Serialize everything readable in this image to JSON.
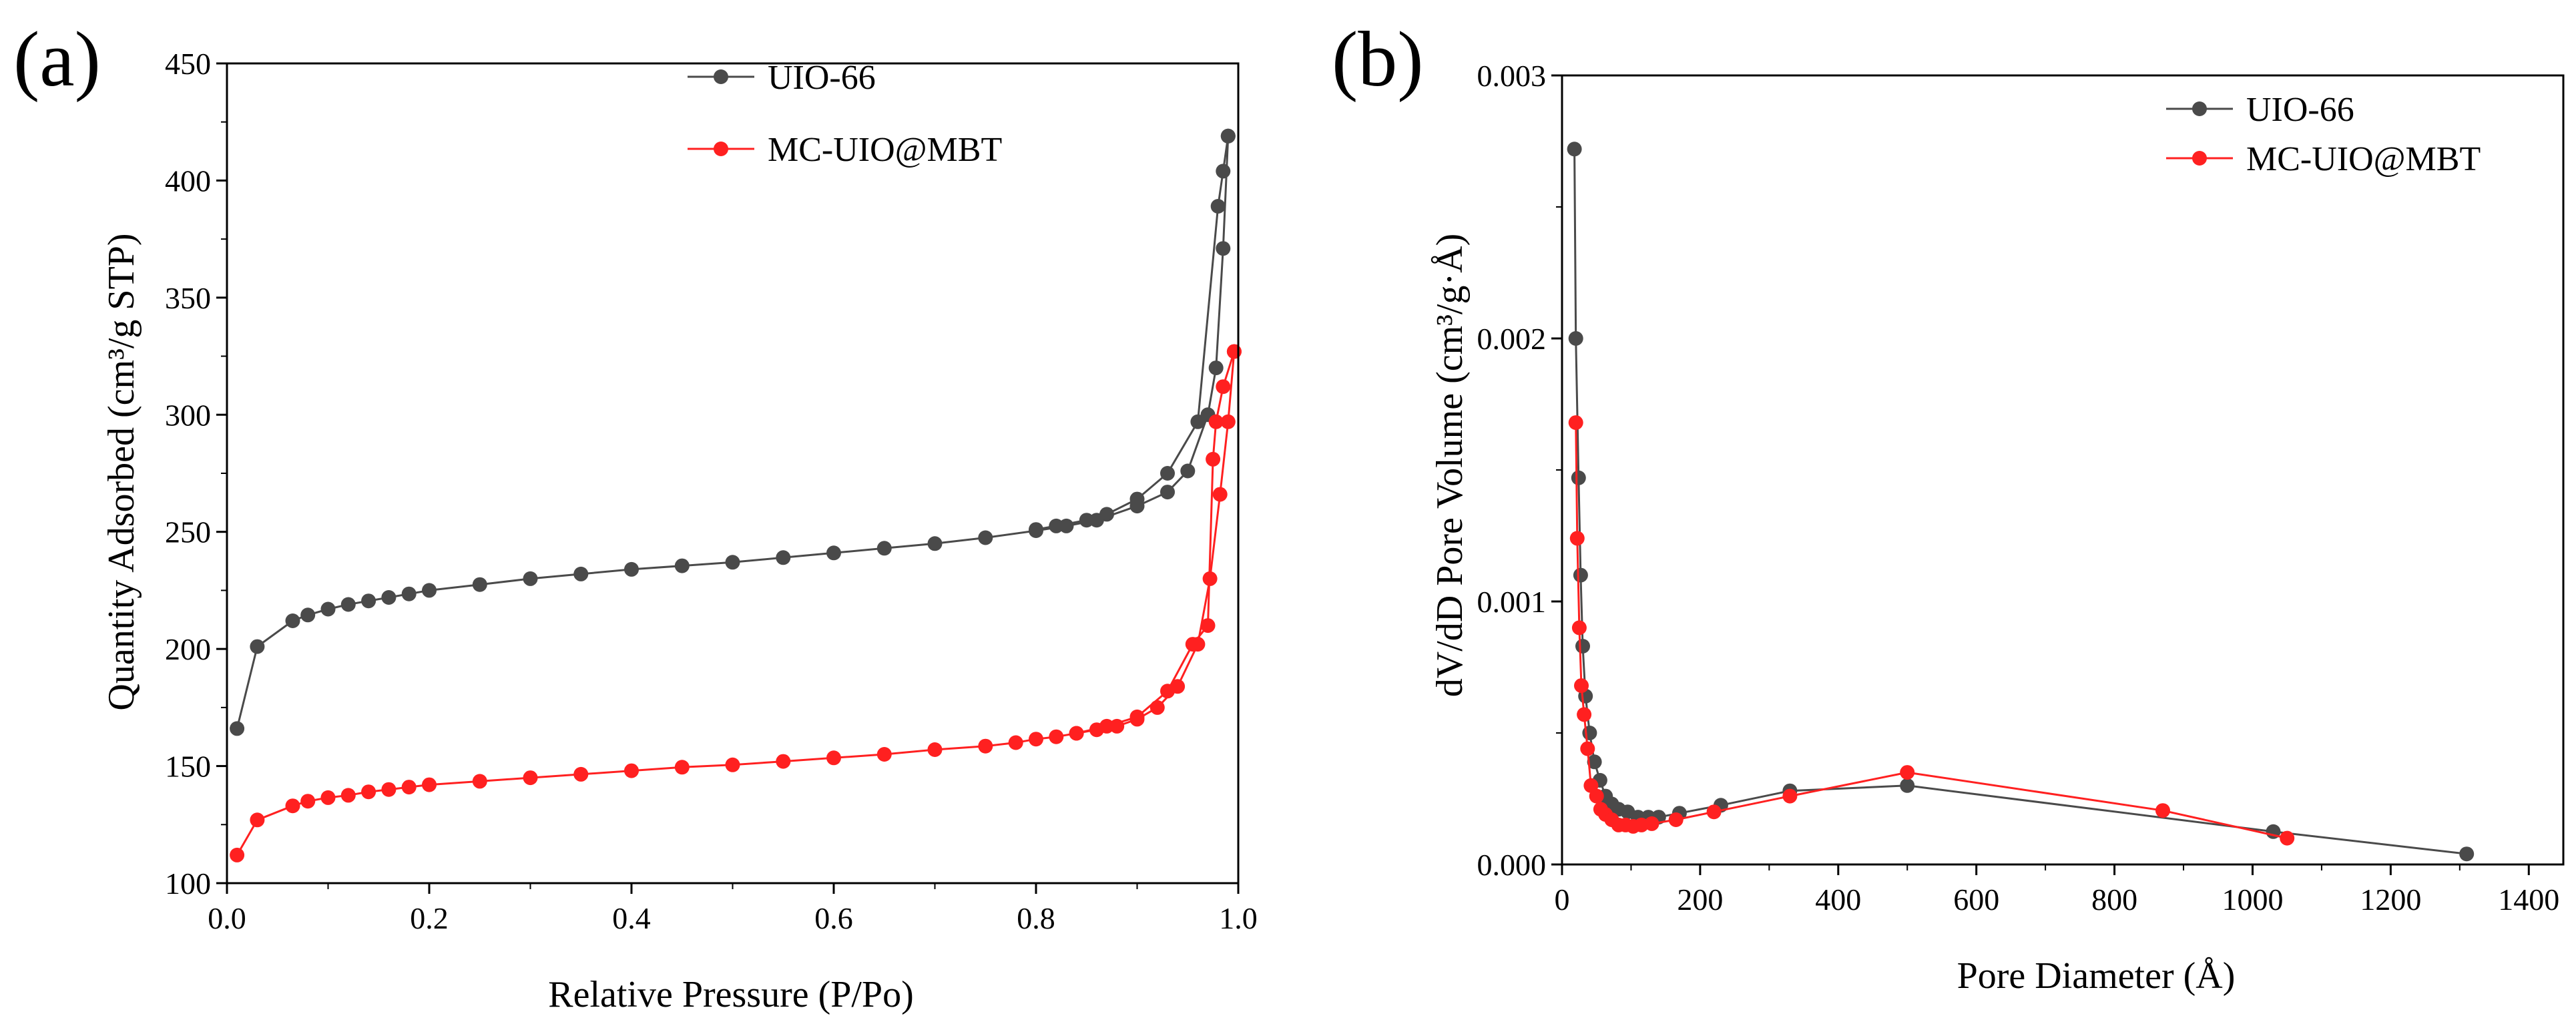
{
  "chart_data": [
    {
      "panel_label": "(a)",
      "type": "line",
      "title": "",
      "xlabel": "Relative Pressure (P/Po)",
      "ylabel": "Quantity Adsorbed (cm³/g STP)",
      "xlim": [
        0.0,
        1.0
      ],
      "ylim": [
        100,
        450
      ],
      "xticks": [
        "0.0",
        "0.2",
        "0.4",
        "0.6",
        "0.8",
        "1.0"
      ],
      "yticks": [
        "100",
        "150",
        "200",
        "250",
        "300",
        "350",
        "400",
        "450"
      ],
      "legend": [
        "UIO-66",
        "MC-UIO@MBT"
      ],
      "series": [
        {
          "name": "UIO-66",
          "color": "#4a4a4a",
          "adsorption": [
            [
              0.01,
              166
            ],
            [
              0.03,
              201
            ],
            [
              0.065,
              212
            ],
            [
              0.08,
              214.5
            ],
            [
              0.1,
              217
            ],
            [
              0.12,
              219
            ],
            [
              0.14,
              220.5
            ],
            [
              0.16,
              222
            ],
            [
              0.18,
              223.5
            ],
            [
              0.2,
              225
            ],
            [
              0.25,
              227.5
            ],
            [
              0.3,
              230
            ],
            [
              0.35,
              232
            ],
            [
              0.4,
              234
            ],
            [
              0.45,
              235.5
            ],
            [
              0.5,
              237
            ],
            [
              0.55,
              239
            ],
            [
              0.6,
              241
            ],
            [
              0.65,
              243
            ],
            [
              0.7,
              245
            ],
            [
              0.75,
              247.5
            ],
            [
              0.8,
              250.5
            ],
            [
              0.83,
              252.5
            ],
            [
              0.86,
              255
            ],
            [
              0.9,
              261
            ],
            [
              0.93,
              267
            ],
            [
              0.95,
              276
            ],
            [
              0.97,
              300
            ],
            [
              0.978,
              320
            ],
            [
              0.985,
              371
            ],
            [
              0.99,
              419
            ]
          ],
          "desorption": [
            [
              0.99,
              419
            ],
            [
              0.985,
              404
            ],
            [
              0.98,
              389
            ],
            [
              0.96,
              297
            ],
            [
              0.93,
              275
            ],
            [
              0.9,
              264
            ],
            [
              0.87,
              257.5
            ],
            [
              0.85,
              255
            ],
            [
              0.82,
              252.5
            ],
            [
              0.8,
              251
            ]
          ]
        },
        {
          "name": "MC-UIO@MBT",
          "color": "#ff2020",
          "adsorption": [
            [
              0.01,
              112
            ],
            [
              0.03,
              127
            ],
            [
              0.065,
              133
            ],
            [
              0.08,
              135
            ],
            [
              0.1,
              136.5
            ],
            [
              0.12,
              137.5
            ],
            [
              0.14,
              139
            ],
            [
              0.16,
              140
            ],
            [
              0.18,
              141
            ],
            [
              0.2,
              142
            ],
            [
              0.25,
              143.5
            ],
            [
              0.3,
              145
            ],
            [
              0.35,
              146.5
            ],
            [
              0.4,
              148
            ],
            [
              0.45,
              149.5
            ],
            [
              0.5,
              150.5
            ],
            [
              0.55,
              152
            ],
            [
              0.6,
              153.5
            ],
            [
              0.65,
              155
            ],
            [
              0.7,
              157
            ],
            [
              0.75,
              158.5
            ],
            [
              0.78,
              160
            ],
            [
              0.8,
              161.5
            ],
            [
              0.82,
              162.5
            ],
            [
              0.84,
              164
            ],
            [
              0.86,
              165.5
            ],
            [
              0.88,
              167
            ],
            [
              0.9,
              170
            ],
            [
              0.92,
              175
            ],
            [
              0.94,
              184
            ],
            [
              0.96,
              202
            ],
            [
              0.972,
              230
            ],
            [
              0.982,
              266
            ],
            [
              0.99,
              297
            ],
            [
              0.996,
              327
            ]
          ],
          "desorption": [
            [
              0.996,
              327
            ],
            [
              0.985,
              312
            ],
            [
              0.978,
              297
            ],
            [
              0.975,
              281
            ],
            [
              0.97,
              210
            ],
            [
              0.955,
              202
            ],
            [
              0.93,
              182
            ],
            [
              0.9,
              171
            ],
            [
              0.87,
              167
            ],
            [
              0.84,
              164
            ]
          ]
        }
      ]
    },
    {
      "panel_label": "(b)",
      "type": "line",
      "title": "",
      "xlabel": "Pore Diameter (Å)",
      "ylabel": "dV/dD Pore Volume (cm³/g·Å)",
      "xlim": [
        0,
        1450
      ],
      "ylim": [
        0,
        0.003
      ],
      "xticks": [
        "0",
        "200",
        "400",
        "600",
        "800",
        "1000",
        "1200",
        "1400"
      ],
      "yticks": [
        "0.000",
        "0.001",
        "0.002",
        "0.003"
      ],
      "legend": [
        "UIO-66",
        "MC-UIO@MBT"
      ],
      "series": [
        {
          "name": "UIO-66",
          "color": "#4a4a4a",
          "points": [
            [
              18,
              0.00272
            ],
            [
              20,
              0.002
            ],
            [
              24,
              0.00147
            ],
            [
              27,
              0.0011
            ],
            [
              30,
              0.00083
            ],
            [
              34,
              0.00064
            ],
            [
              40,
              0.0005
            ],
            [
              47,
              0.00039
            ],
            [
              55,
              0.00032
            ],
            [
              63,
              0.00026
            ],
            [
              72,
              0.00023
            ],
            [
              82,
              0.00021
            ],
            [
              95,
              0.0002
            ],
            [
              110,
              0.00018
            ],
            [
              125,
              0.00018
            ],
            [
              140,
              0.00018
            ],
            [
              170,
              0.000195
            ],
            [
              230,
              0.000225
            ],
            [
              330,
              0.00028
            ],
            [
              500,
              0.0003
            ],
            [
              1030,
              0.000125
            ],
            [
              1310,
              4e-05
            ]
          ]
        },
        {
          "name": "MC-UIO@MBT",
          "color": "#ff2020",
          "points": [
            [
              20,
              0.00168
            ],
            [
              22,
              0.00124
            ],
            [
              25,
              0.0009
            ],
            [
              28,
              0.00068
            ],
            [
              32,
              0.00057
            ],
            [
              37,
              0.00044
            ],
            [
              42,
              0.0003
            ],
            [
              50,
              0.00026
            ],
            [
              56,
              0.00021
            ],
            [
              63,
              0.00019
            ],
            [
              72,
              0.00017
            ],
            [
              82,
              0.00015
            ],
            [
              92,
              0.00015
            ],
            [
              103,
              0.000145
            ],
            [
              115,
              0.00015
            ],
            [
              130,
              0.000155
            ],
            [
              165,
              0.00017
            ],
            [
              220,
              0.0002
            ],
            [
              330,
              0.00026
            ],
            [
              500,
              0.00035
            ],
            [
              870,
              0.000205
            ],
            [
              1050,
              0.0001
            ]
          ]
        }
      ]
    }
  ]
}
